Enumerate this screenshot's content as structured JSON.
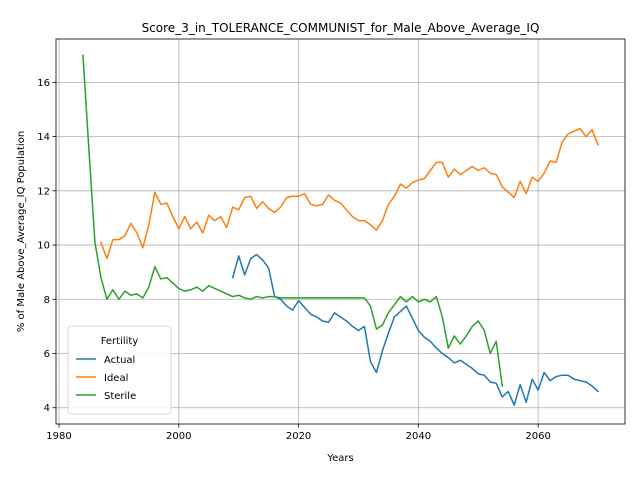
{
  "chart_data": {
    "type": "line",
    "title": "Score_3_in_TOLERANCE_COMMUNIST_for_Male_Above_Average_IQ",
    "xlabel": "Years",
    "ylabel": "% of Male Above_Average_IQ Population",
    "xlim": [
      1979.5,
      2074.5
    ],
    "ylim": [
      3.4,
      17.6
    ],
    "xticks": [
      1980,
      2000,
      2020,
      2040,
      2060
    ],
    "yticks": [
      4,
      6,
      8,
      10,
      12,
      14,
      16
    ],
    "grid": true,
    "legend": {
      "title": "Fertility",
      "position": "lower-left"
    },
    "series": [
      {
        "name": "Actual",
        "color": "#1f77b4",
        "x": [
          2009,
          2010,
          2011,
          2012,
          2013,
          2014,
          2015,
          2016,
          2017,
          2018,
          2019,
          2020,
          2021,
          2022,
          2023,
          2024,
          2025,
          2026,
          2027,
          2028,
          2029,
          2030,
          2031,
          2032,
          2033,
          2034,
          2035,
          2036,
          2037,
          2038,
          2039,
          2040,
          2041,
          2042,
          2043,
          2044,
          2045,
          2046,
          2047,
          2048,
          2049,
          2050,
          2051,
          2052,
          2053,
          2054,
          2055,
          2056,
          2057,
          2058,
          2059,
          2060,
          2061,
          2062,
          2063,
          2064,
          2065,
          2066,
          2067,
          2068,
          2069,
          2070
        ],
        "y": [
          8.8,
          9.6,
          8.9,
          9.5,
          9.65,
          9.45,
          9.15,
          8.1,
          8.0,
          7.75,
          7.6,
          7.95,
          7.7,
          7.45,
          7.35,
          7.2,
          7.15,
          7.5,
          7.35,
          7.2,
          7.0,
          6.85,
          7.0,
          5.7,
          5.3,
          6.1,
          6.75,
          7.35,
          7.55,
          7.75,
          7.3,
          6.85,
          6.6,
          6.45,
          6.2,
          6.0,
          5.85,
          5.65,
          5.75,
          5.6,
          5.45,
          5.25,
          5.2,
          4.95,
          4.9,
          4.4,
          4.6,
          4.1,
          4.85,
          4.2,
          5.05,
          4.65,
          5.3,
          5.0,
          5.15,
          5.2,
          5.2,
          5.05,
          5.0,
          4.95,
          4.8,
          4.6
        ]
      },
      {
        "name": "Ideal",
        "color": "#ff7f0e",
        "x": [
          1987,
          1988,
          1989,
          1990,
          1991,
          1992,
          1993,
          1994,
          1995,
          1996,
          1997,
          1998,
          1999,
          2000,
          2001,
          2002,
          2003,
          2004,
          2005,
          2006,
          2007,
          2008,
          2009,
          2010,
          2011,
          2012,
          2013,
          2014,
          2015,
          2016,
          2017,
          2018,
          2019,
          2020,
          2021,
          2022,
          2023,
          2024,
          2025,
          2026,
          2027,
          2028,
          2029,
          2030,
          2031,
          2032,
          2033,
          2034,
          2035,
          2036,
          2037,
          2038,
          2039,
          2040,
          2041,
          2042,
          2043,
          2044,
          2045,
          2046,
          2047,
          2048,
          2049,
          2050,
          2051,
          2052,
          2053,
          2054,
          2055,
          2056,
          2057,
          2058,
          2059,
          2060,
          2061,
          2062,
          2063,
          2064,
          2065,
          2066,
          2067,
          2068,
          2069,
          2070
        ],
        "y": [
          10.1,
          9.5,
          10.2,
          10.2,
          10.35,
          10.8,
          10.45,
          9.9,
          10.75,
          11.95,
          11.5,
          11.55,
          11.05,
          10.6,
          11.05,
          10.6,
          10.85,
          10.45,
          11.1,
          10.9,
          11.05,
          10.65,
          11.4,
          11.3,
          11.75,
          11.8,
          11.35,
          11.6,
          11.35,
          11.2,
          11.4,
          11.75,
          11.8,
          11.8,
          11.9,
          11.5,
          11.45,
          11.5,
          11.85,
          11.65,
          11.55,
          11.3,
          11.05,
          10.9,
          10.9,
          10.75,
          10.55,
          10.9,
          11.5,
          11.8,
          12.25,
          12.1,
          12.3,
          12.4,
          12.45,
          12.75,
          13.05,
          13.05,
          12.5,
          12.8,
          12.6,
          12.75,
          12.9,
          12.75,
          12.85,
          12.65,
          12.6,
          12.15,
          11.95,
          11.75,
          12.35,
          11.9,
          12.5,
          12.35,
          12.65,
          13.1,
          13.05,
          13.8,
          14.1,
          14.2,
          14.3,
          14.0,
          14.25,
          13.7
        ]
      },
      {
        "name": "Sterile",
        "color": "#2ca02c",
        "x": [
          1984,
          1985,
          1986,
          1987,
          1988,
          1989,
          1990,
          1991,
          1992,
          1993,
          1994,
          1995,
          1996,
          1997,
          1998,
          1999,
          2000,
          2001,
          2002,
          2003,
          2004,
          2005,
          2006,
          2007,
          2008,
          2009,
          2010,
          2011,
          2012,
          2013,
          2014,
          2015,
          2016,
          2017,
          2018,
          2019,
          2020,
          2021,
          2022,
          2023,
          2024,
          2025,
          2026,
          2027,
          2028,
          2029,
          2030,
          2031,
          2032,
          2033,
          2034,
          2035,
          2036,
          2037,
          2038,
          2039,
          2040,
          2041,
          2042,
          2043,
          2044,
          2045,
          2046,
          2047,
          2048,
          2049,
          2050,
          2051,
          2052,
          2053,
          2054
        ],
        "y": [
          17.0,
          13.5,
          10.1,
          8.8,
          8.0,
          8.35,
          8.0,
          8.3,
          8.15,
          8.2,
          8.05,
          8.45,
          9.2,
          8.75,
          8.8,
          8.6,
          8.4,
          8.3,
          8.35,
          8.45,
          8.3,
          8.5,
          8.4,
          8.3,
          8.2,
          8.1,
          8.15,
          8.05,
          8.0,
          8.1,
          8.05,
          8.1,
          8.1,
          8.05,
          8.05,
          8.05,
          8.05,
          8.05,
          8.05,
          8.05,
          8.05,
          8.05,
          8.05,
          8.05,
          8.05,
          8.05,
          8.05,
          8.05,
          7.75,
          6.9,
          7.05,
          7.5,
          7.8,
          8.1,
          7.9,
          8.1,
          7.9,
          8.0,
          7.9,
          8.1,
          7.35,
          6.2,
          6.65,
          6.35,
          6.65,
          7.0,
          7.2,
          6.85,
          6.0,
          6.45,
          4.8
        ]
      }
    ]
  }
}
